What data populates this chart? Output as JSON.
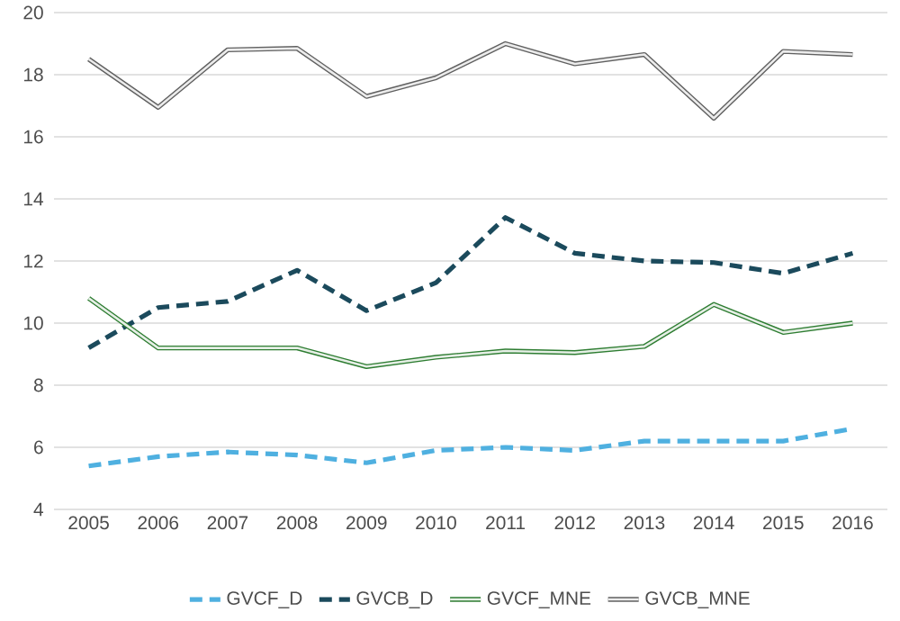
{
  "chart_data": {
    "type": "line",
    "categories": [
      "2005",
      "2006",
      "2007",
      "2008",
      "2009",
      "2010",
      "2011",
      "2012",
      "2013",
      "2014",
      "2015",
      "2016"
    ],
    "series": [
      {
        "name": "GVCF_D",
        "color": "#4fb0e0",
        "line_style": "dashed",
        "values": [
          5.4,
          5.7,
          5.85,
          5.75,
          5.5,
          5.9,
          6.0,
          5.9,
          6.2,
          6.2,
          6.2,
          6.6
        ]
      },
      {
        "name": "GVCB_D",
        "color": "#1b4a5c",
        "line_style": "dashed",
        "values": [
          9.2,
          10.5,
          10.7,
          11.7,
          10.4,
          11.3,
          13.4,
          12.25,
          12.0,
          11.95,
          11.6,
          12.25
        ]
      },
      {
        "name": "GVCF_MNE",
        "color": "#2e7d32",
        "line_style": "solid",
        "values": [
          10.8,
          9.2,
          9.2,
          9.2,
          8.6,
          8.9,
          9.1,
          9.05,
          9.25,
          10.6,
          9.7,
          10.0
        ]
      },
      {
        "name": "GVCB_MNE",
        "color": "#606060",
        "line_style": "solid",
        "values": [
          18.5,
          16.95,
          18.8,
          18.85,
          17.3,
          17.9,
          19.0,
          18.35,
          18.65,
          16.6,
          18.75,
          18.65
        ]
      }
    ],
    "ylim": [
      4,
      20
    ],
    "yticks": [
      4,
      6,
      8,
      10,
      12,
      14,
      16,
      18,
      20
    ],
    "grid": "y",
    "legend": "bottom",
    "marker": "none"
  }
}
